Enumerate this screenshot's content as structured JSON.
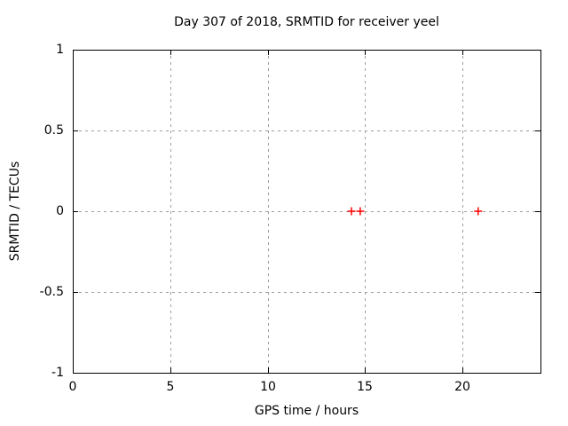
{
  "chart_data": {
    "type": "scatter",
    "title": "Day 307 of 2018, SRMTID for receiver yeel",
    "xlabel": "GPS time / hours",
    "ylabel": "SRMTID / TECUs",
    "xlim": [
      0,
      24
    ],
    "ylim": [
      -1,
      1
    ],
    "grid": true,
    "legend": "none",
    "xticks": [
      {
        "v": 0,
        "label": "0"
      },
      {
        "v": 5,
        "label": "5"
      },
      {
        "v": 10,
        "label": "10"
      },
      {
        "v": 15,
        "label": "15"
      },
      {
        "v": 20,
        "label": "20"
      }
    ],
    "yticks": [
      {
        "v": 1,
        "label": "1"
      },
      {
        "v": 0.5,
        "label": "0.5"
      },
      {
        "v": 0,
        "label": "0"
      },
      {
        "v": -0.5,
        "label": "-0.5"
      },
      {
        "v": -1,
        "label": "-1"
      }
    ],
    "series": [
      {
        "marker": "plus",
        "color": "#ff0000",
        "points": [
          [
            14.3,
            0
          ],
          [
            14.75,
            0
          ],
          [
            20.8,
            0
          ]
        ]
      }
    ]
  },
  "colors": {
    "background": "#ffffff",
    "border": "#000000",
    "grid": "#9e9e9e",
    "text": "#000000"
  }
}
